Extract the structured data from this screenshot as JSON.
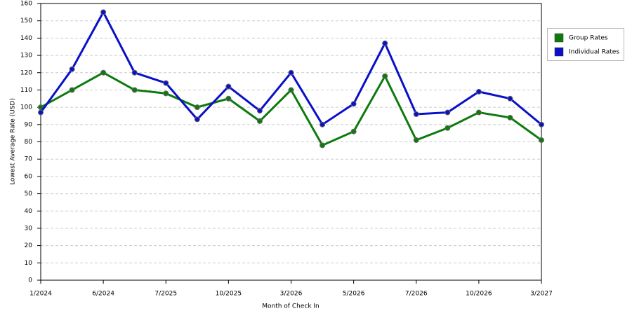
{
  "chart_data": {
    "type": "line",
    "x_label": "Month of Check In",
    "y_label": "Lowest Average Rate (USD)",
    "categories": [
      "1/2024",
      null,
      "6/2024",
      null,
      "7/2025",
      null,
      "10/2025",
      null,
      "3/2026",
      null,
      "5/2026",
      null,
      "7/2026",
      null,
      "10/2026",
      null,
      "3/2027"
    ],
    "series": [
      {
        "name": "Group Rates",
        "color": "#0e7a0e",
        "values": [
          100,
          110,
          120,
          110,
          108,
          100,
          105,
          92,
          110,
          78,
          86,
          118,
          81,
          88,
          97,
          94,
          81
        ]
      },
      {
        "name": "Individual Rates",
        "color": "#0a10c8",
        "values": [
          97,
          122,
          155,
          120,
          114,
          93,
          112,
          98,
          120,
          90,
          102,
          137,
          96,
          97,
          109,
          105,
          90
        ]
      }
    ],
    "ylim": [
      0,
      160
    ],
    "yticks": [
      0,
      10,
      20,
      30,
      40,
      50,
      60,
      70,
      80,
      90,
      100,
      110,
      120,
      130,
      140,
      150,
      160
    ],
    "grid": true,
    "legend": "right"
  }
}
